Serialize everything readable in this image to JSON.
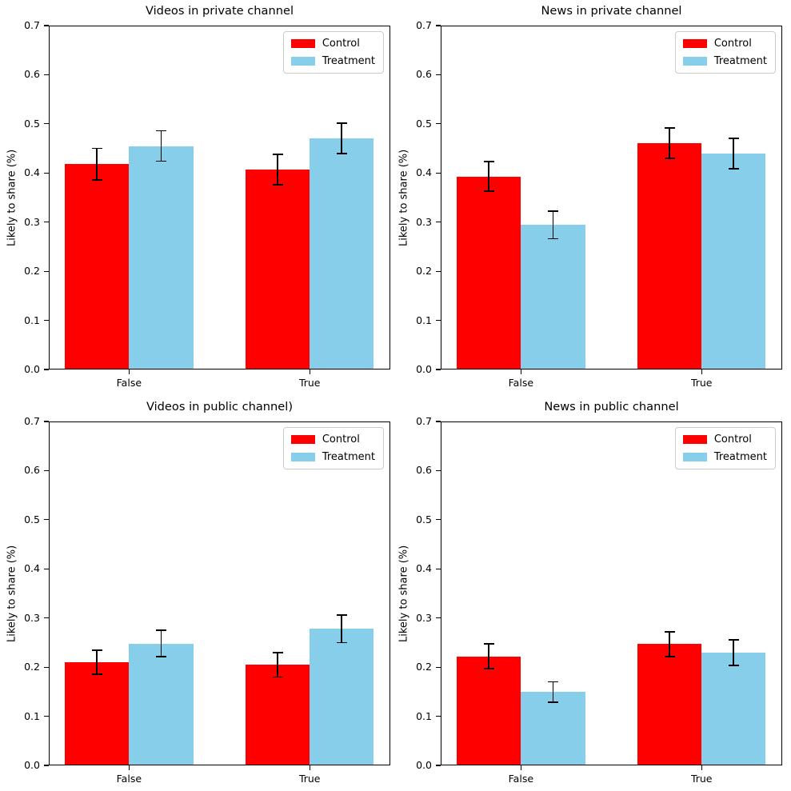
{
  "figure": {
    "ylabel": "Likely to share (%)",
    "categories": [
      "False",
      "True"
    ],
    "legend_entries": [
      "Control",
      "Treatment"
    ],
    "colors": {
      "control": "#ff0000",
      "treatment": "#87ceeb",
      "axis": "#000000",
      "legend_border": "#cccccc",
      "background": "#ffffff"
    }
  },
  "chart_data": [
    {
      "type": "bar",
      "title": "Videos in private channel",
      "ylabel": "Likely to share (%)",
      "xlabel": "",
      "categories": [
        "False",
        "True"
      ],
      "ylim": [
        0.0,
        0.7
      ],
      "yticks": [
        "0.0",
        "0.1",
        "0.2",
        "0.3",
        "0.4",
        "0.5",
        "0.6",
        "0.7"
      ],
      "grid": false,
      "legend_position": "upper right",
      "series": [
        {
          "name": "Control",
          "color": "#ff0000",
          "values": [
            0.418,
            0.407
          ],
          "errors": [
            0.032,
            0.031
          ]
        },
        {
          "name": "Treatment",
          "color": "#87ceeb",
          "values": [
            0.455,
            0.47
          ],
          "errors": [
            0.031,
            0.031
          ]
        }
      ]
    },
    {
      "type": "bar",
      "title": "News in private channel",
      "ylabel": "Likely to share (%)",
      "xlabel": "",
      "categories": [
        "False",
        "True"
      ],
      "ylim": [
        0.0,
        0.7
      ],
      "yticks": [
        "0.0",
        "0.1",
        "0.2",
        "0.3",
        "0.4",
        "0.5",
        "0.6",
        "0.7"
      ],
      "grid": false,
      "legend_position": "upper right",
      "series": [
        {
          "name": "Control",
          "color": "#ff0000",
          "values": [
            0.393,
            0.461
          ],
          "errors": [
            0.03,
            0.031
          ]
        },
        {
          "name": "Treatment",
          "color": "#87ceeb",
          "values": [
            0.294,
            0.44
          ],
          "errors": [
            0.028,
            0.031
          ]
        }
      ]
    },
    {
      "type": "bar",
      "title": "Videos in public channel)",
      "ylabel": "Likely to share (%)",
      "xlabel": "",
      "categories": [
        "False",
        "True"
      ],
      "ylim": [
        0.0,
        0.7
      ],
      "yticks": [
        "0.0",
        "0.1",
        "0.2",
        "0.3",
        "0.4",
        "0.5",
        "0.6",
        "0.7"
      ],
      "grid": false,
      "legend_position": "upper right",
      "series": [
        {
          "name": "Control",
          "color": "#ff0000",
          "values": [
            0.21,
            0.205
          ],
          "errors": [
            0.025,
            0.025
          ]
        },
        {
          "name": "Treatment",
          "color": "#87ceeb",
          "values": [
            0.248,
            0.278
          ],
          "errors": [
            0.027,
            0.028
          ]
        }
      ]
    },
    {
      "type": "bar",
      "title": "News in public channel",
      "ylabel": "Likely to share (%)",
      "xlabel": "",
      "categories": [
        "False",
        "True"
      ],
      "ylim": [
        0.0,
        0.7
      ],
      "yticks": [
        "0.0",
        "0.1",
        "0.2",
        "0.3",
        "0.4",
        "0.5",
        "0.6",
        "0.7"
      ],
      "grid": false,
      "legend_position": "upper right",
      "series": [
        {
          "name": "Control",
          "color": "#ff0000",
          "values": [
            0.222,
            0.247
          ],
          "errors": [
            0.025,
            0.025
          ]
        },
        {
          "name": "Treatment",
          "color": "#87ceeb",
          "values": [
            0.149,
            0.23
          ],
          "errors": [
            0.021,
            0.026
          ]
        }
      ]
    }
  ]
}
